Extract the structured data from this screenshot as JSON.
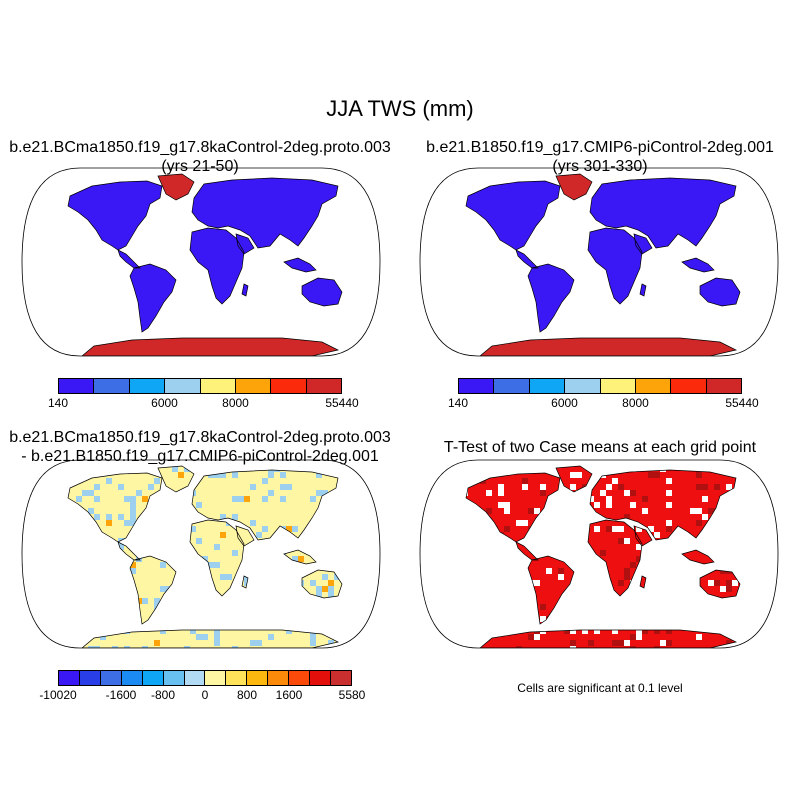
{
  "figure": {
    "title": "JJA TWS (mm)"
  },
  "panels": {
    "top_left": {
      "title_line1": "b.e21.BCma1850.f19_g17.8kaControl-2deg.proto.003",
      "title_line2": "(yrs 21-50)"
    },
    "top_right": {
      "title_line1": "b.e21.B1850.f19_g17.CMIP6-piControl-2deg.001",
      "title_line2": "(yrs 301-330)"
    },
    "bottom_left": {
      "title_line1": "b.e21.BCma1850.f19_g17.8kaControl-2deg.proto.003",
      "title_line2": "- b.e21.B1850.f19_g17.CMIP6-piControl-2deg.001"
    },
    "bottom_right": {
      "title_line1": "T-Test of two Case means at each grid point",
      "note": "Cells are significant at 0.1 level"
    }
  },
  "colorbars": {
    "tws": {
      "colors": [
        "#3a18f5",
        "#3e6ee6",
        "#0ea6f5",
        "#9dd0ee",
        "#fef27a",
        "#fca40a",
        "#fb2a0a",
        "#d02828"
      ],
      "labels": [
        "140",
        "6000",
        "8000",
        "55440"
      ],
      "label_bounds": [
        0,
        3,
        5,
        8
      ]
    },
    "diff": {
      "colors": [
        "#3a18f5",
        "#2a3ee8",
        "#3e6ee6",
        "#1b8af2",
        "#0ea6f5",
        "#68c0f0",
        "#b2dbf3",
        "#fef6a2",
        "#fde25a",
        "#fcb80e",
        "#fc8a0a",
        "#fb4a0a",
        "#e20f0a",
        "#c92f2f"
      ],
      "labels": [
        "-10020",
        "-1600",
        "-800",
        "0",
        "800",
        "1600",
        "5580"
      ],
      "label_bounds": [
        0,
        3,
        5,
        7,
        9,
        11,
        14
      ]
    }
  },
  "map_colors": {
    "land_blue": "#3a18f5",
    "ice_red": "#d02828",
    "diff_light_blue": "#9dd0ee",
    "diff_yellow": "#fef6a2",
    "diff_orange": "#fca40a",
    "signif_red": "#ee1010",
    "signif_dark": "#b01010",
    "coast": "#000000"
  }
}
